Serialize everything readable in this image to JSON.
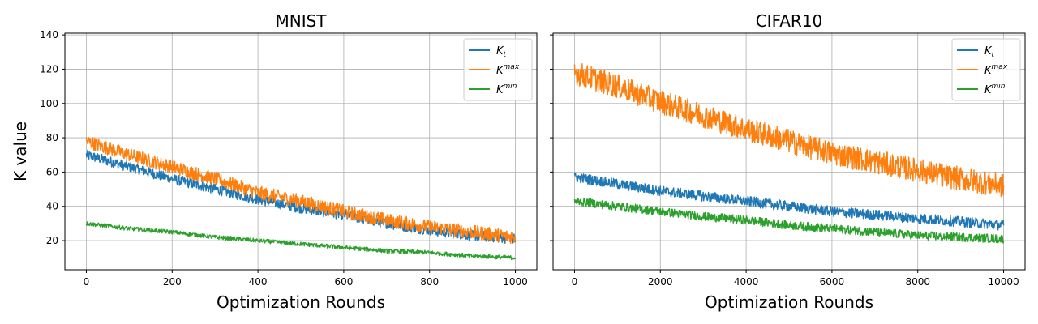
{
  "figure": {
    "ylabel": "K value"
  },
  "chart_data": [
    {
      "type": "line",
      "title": "MNIST",
      "xlabel": "Optimization Rounds",
      "ylabel": "K value",
      "xlim": [
        -50,
        1050
      ],
      "ylim": [
        3,
        141
      ],
      "xticks": [
        0,
        200,
        400,
        600,
        800,
        1000
      ],
      "yticks": [
        20,
        40,
        60,
        80,
        100,
        120,
        140
      ],
      "grid": true,
      "legend_position": "top-right",
      "noise_amplitude": [
        3,
        4,
        1.2
      ],
      "x": [
        0,
        100,
        200,
        300,
        400,
        500,
        600,
        700,
        800,
        900,
        1000
      ],
      "series": [
        {
          "name": "K_t",
          "color": "#1f77b4",
          "values": [
            70,
            63,
            56,
            50,
            44,
            39,
            35,
            30,
            26,
            23,
            21
          ]
        },
        {
          "name": "K^max",
          "color": "#ff7f0e",
          "values": [
            78,
            70,
            63,
            56,
            48,
            43,
            37,
            32,
            28,
            25,
            22
          ]
        },
        {
          "name": "K^min",
          "color": "#2ca02c",
          "values": [
            30,
            27,
            25,
            22,
            20,
            18,
            16,
            14,
            13,
            11,
            10
          ]
        }
      ]
    },
    {
      "type": "line",
      "title": "CIFAR10",
      "xlabel": "Optimization Rounds",
      "ylabel": "",
      "xlim": [
        -500,
        10500
      ],
      "ylim": [
        3,
        141
      ],
      "xticks": [
        0,
        2000,
        4000,
        6000,
        8000,
        10000
      ],
      "yticks": [
        20,
        40,
        60,
        80,
        100,
        120,
        140
      ],
      "grid": true,
      "legend_position": "top-right",
      "noise_amplitude": [
        3,
        7,
        2.5
      ],
      "x": [
        0,
        1000,
        2000,
        3000,
        4000,
        5000,
        6000,
        7000,
        8000,
        9000,
        10000
      ],
      "series": [
        {
          "name": "K_t",
          "color": "#1f77b4",
          "values": [
            57,
            53,
            49,
            46,
            43,
            40,
            37,
            35,
            33,
            31,
            29
          ]
        },
        {
          "name": "K^max",
          "color": "#ff7f0e",
          "values": [
            118,
            110,
            101,
            93,
            85,
            78,
            71,
            66,
            61,
            56,
            52
          ]
        },
        {
          "name": "K^min",
          "color": "#2ca02c",
          "values": [
            43,
            40,
            37,
            34,
            32,
            29,
            27,
            25,
            23,
            22,
            21
          ]
        }
      ]
    }
  ]
}
